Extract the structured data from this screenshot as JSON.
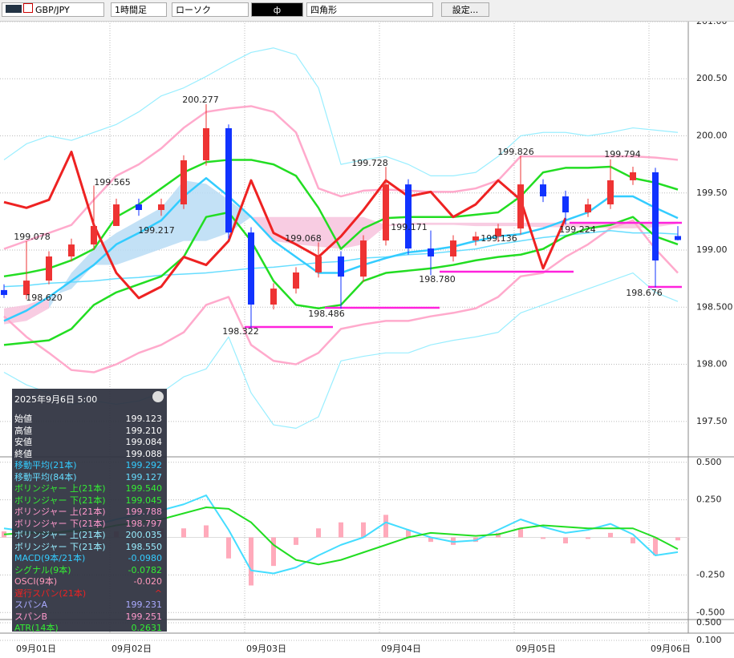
{
  "toolbar": {
    "symbol": "GBP/JPY",
    "timeframe": "1時間足",
    "chart_type": "ローソク",
    "color_box": "ф",
    "tool": "四角形",
    "settings": "設定..."
  },
  "info_panel": {
    "datetime": "2025年9月6日  5:00",
    "rows": [
      {
        "label": "始値",
        "value": "199.123",
        "color": "#ffffff"
      },
      {
        "label": "高値",
        "value": "199.210",
        "color": "#ffffff"
      },
      {
        "label": "安値",
        "value": "199.084",
        "color": "#ffffff"
      },
      {
        "label": "終値",
        "value": "199.088",
        "color": "#ffffff"
      },
      {
        "label": "移動平均(21本)",
        "value": "199.292",
        "color": "#33ccff"
      },
      {
        "label": "移動平均(84本)",
        "value": "199.127",
        "color": "#66ddff"
      },
      {
        "label": "ボリンジャー 上(21本)",
        "value": "199.540",
        "color": "#33ee33"
      },
      {
        "label": "ボリンジャー 下(21本)",
        "value": "199.045",
        "color": "#33ee33"
      },
      {
        "label": "ボリンジャー 上(21本)",
        "value": "199.788",
        "color": "#ff99cc"
      },
      {
        "label": "ボリンジャー 下(21本)",
        "value": "198.797",
        "color": "#ff99cc"
      },
      {
        "label": "ボリンジャー 上(21本)",
        "value": "200.035",
        "color": "#99eeff"
      },
      {
        "label": "ボリンジャー 下(21本)",
        "value": "198.550",
        "color": "#99eeff"
      },
      {
        "label": "MACD(9本/21本)",
        "value": "-0.0980",
        "color": "#33ccff"
      },
      {
        "label": "シグナル(9本)",
        "value": "-0.0782",
        "color": "#33ee33"
      },
      {
        "label": "OSCI(9本)",
        "value": "-0.020",
        "color": "#ff99bb"
      },
      {
        "label": "遅行スパン(21本)",
        "value": "^",
        "color": "#ee2222"
      },
      {
        "label": "スパンA",
        "value": "199.231",
        "color": "#aaaaff"
      },
      {
        "label": "スパンB",
        "value": "199.251",
        "color": "#ff99cc"
      },
      {
        "label": "ATR(14本)",
        "value": "0.2631",
        "color": "#33ee33"
      }
    ]
  },
  "price_axis": {
    "ylim": [
      197.19,
      201.035
    ],
    "ticks": [
      {
        "value": 201,
        "label": "201.00"
      },
      {
        "value": 200.5,
        "label": "200.50"
      },
      {
        "value": 200,
        "label": "200.00"
      },
      {
        "value": 199.5,
        "label": "199.50"
      },
      {
        "value": 199,
        "label": "199.00"
      },
      {
        "value": 198.5,
        "label": "198.500"
      },
      {
        "value": 198,
        "label": "198.00"
      },
      {
        "value": 197.5,
        "label": "197.50"
      }
    ]
  },
  "macd_axis": {
    "ylim": [
      -0.52,
      0.52
    ],
    "ticks": [
      {
        "value": 0.5,
        "label": "0.500"
      },
      {
        "value": 0.25,
        "label": "0.250"
      },
      {
        "value": -0.25,
        "label": "-0.250"
      },
      {
        "value": -0.5,
        "label": "-0.500"
      }
    ]
  },
  "atr_axis": {
    "ylim": [
      0.1,
      0.5
    ],
    "ticks": [
      {
        "value": 0.5,
        "label": "0.500"
      },
      {
        "value": 0.1,
        "label": "0.100"
      }
    ]
  },
  "dates": [
    "09月01日",
    "09月02日",
    "09月03日",
    "09月04日",
    "09月05日",
    "09月06日"
  ],
  "annotations": [
    "200.277",
    "199.565",
    "199.078",
    "198.620",
    "199.217",
    "198.322",
    "199.068",
    "198.486",
    "199.728",
    "199.171",
    "198.780",
    "199.136",
    "199.826",
    "199.224",
    "199.794",
    "198.676"
  ],
  "candles": {
    "up_color": "#ee3333",
    "down_color": "#1133ff",
    "open": [
      198.65,
      198.607,
      198.733,
      198.944,
      199.049,
      199.211,
      199.4,
      199.351,
      199.4,
      199.786,
      200.067,
      199.154,
      198.523,
      198.663,
      198.804,
      198.944,
      198.768,
      199.084,
      199.575,
      199.014,
      198.944,
      199.084,
      199.119,
      199.189,
      199.575,
      199.47,
      199.33,
      199.4,
      199.611,
      199.681,
      199.123
    ],
    "high": [
      198.7,
      199.078,
      198.99,
      199.1,
      199.565,
      199.45,
      199.45,
      199.45,
      199.83,
      200.277,
      200.1,
      199.2,
      198.71,
      198.85,
      199.068,
      198.99,
      199.13,
      199.728,
      199.62,
      199.171,
      199.13,
      199.16,
      199.23,
      199.826,
      199.62,
      199.52,
      199.45,
      199.794,
      199.73,
      199.72,
      199.21
    ],
    "low": [
      198.58,
      198.57,
      198.7,
      198.9,
      199.0,
      199.217,
      199.3,
      199.3,
      199.36,
      199.74,
      199.1,
      198.322,
      198.48,
      198.62,
      198.76,
      198.486,
      198.72,
      199.04,
      198.96,
      198.78,
      198.9,
      199.04,
      199.07,
      199.136,
      199.42,
      199.224,
      199.29,
      199.36,
      199.57,
      198.676,
      199.084
    ],
    "close": [
      198.607,
      198.733,
      198.944,
      199.049,
      199.211,
      199.4,
      199.351,
      199.4,
      199.786,
      200.067,
      199.154,
      198.523,
      198.663,
      198.804,
      198.944,
      198.768,
      199.084,
      199.575,
      199.014,
      198.944,
      199.084,
      199.119,
      199.189,
      199.575,
      199.47,
      199.33,
      199.4,
      199.611,
      199.681,
      198.909,
      199.088
    ]
  },
  "cloud": {
    "up_color": "#b9dcf5",
    "down_color": "#f7c3dd",
    "span_a": [
      198.35,
      198.38,
      198.49,
      198.8,
      199.01,
      199.15,
      199.26,
      199.37,
      199.61,
      199.58,
      199.44,
      199.29,
      199.08,
      199.05,
      199.03,
      199.01,
      199.05,
      199.21,
      199.22,
      199.22,
      199.22,
      199.21,
      199.21,
      199.21,
      199.2,
      199.2,
      199.2,
      199.19,
      199.19,
      199.2,
      199.23
    ],
    "span_b": [
      198.49,
      198.52,
      198.59,
      198.66,
      198.87,
      198.87,
      198.94,
      199.01,
      199.08,
      199.08,
      199.15,
      199.29,
      199.29,
      199.29,
      199.29,
      199.29,
      199.29,
      199.22,
      199.24,
      199.24,
      199.24,
      199.24,
      199.24,
      199.24,
      199.24,
      199.24,
      199.24,
      199.24,
      199.24,
      199.24,
      199.25
    ]
  },
  "lines": [
    {
      "color": "#99eeff",
      "values": [
        199.79,
        199.93,
        200.0,
        199.96,
        200.03,
        200.1,
        200.21,
        200.35,
        200.42,
        200.52,
        200.63,
        200.73,
        200.77,
        200.71,
        200.42,
        199.75,
        199.79,
        199.82,
        199.75,
        199.65,
        199.65,
        199.68,
        199.82,
        200.0,
        200.03,
        200.03,
        200.0,
        200.03,
        200.07,
        200.05,
        200.03
      ]
    },
    {
      "color": "#99eeff",
      "values": [
        197.93,
        197.82,
        197.75,
        197.65,
        197.68,
        197.65,
        197.68,
        197.75,
        197.89,
        197.96,
        198.24,
        197.75,
        197.47,
        197.44,
        197.54,
        198.03,
        198.07,
        198.1,
        198.1,
        198.17,
        198.21,
        198.24,
        198.28,
        198.45,
        198.52,
        198.59,
        198.66,
        198.73,
        198.8,
        198.63,
        198.55
      ]
    },
    {
      "color": "#ffaacc",
      "values": [
        199.01,
        199.08,
        199.15,
        199.22,
        199.44,
        199.65,
        199.75,
        199.89,
        200.07,
        200.21,
        200.24,
        200.26,
        200.21,
        200.03,
        199.54,
        199.47,
        199.52,
        199.53,
        199.52,
        199.51,
        199.51,
        199.54,
        199.61,
        199.82,
        199.82,
        199.82,
        199.82,
        199.82,
        199.82,
        199.81,
        199.79
      ]
    },
    {
      "color": "#ffaacc",
      "values": [
        198.42,
        198.24,
        198.1,
        197.95,
        197.93,
        198.0,
        198.1,
        198.17,
        198.28,
        198.52,
        198.59,
        198.17,
        198.03,
        198.0,
        198.1,
        198.31,
        198.35,
        198.38,
        198.38,
        198.42,
        198.45,
        198.49,
        198.59,
        198.77,
        198.8,
        198.94,
        199.05,
        199.19,
        199.26,
        199.01,
        198.8
      ]
    },
    {
      "color": "#66ddff",
      "values": [
        198.68,
        198.69,
        198.71,
        198.72,
        198.73,
        198.75,
        198.76,
        198.78,
        198.79,
        198.8,
        198.82,
        198.84,
        198.85,
        198.87,
        198.89,
        198.9,
        198.93,
        198.94,
        198.96,
        198.97,
        198.99,
        199.01,
        199.05,
        199.08,
        199.11,
        199.13,
        199.15,
        199.17,
        199.15,
        199.15,
        199.14
      ]
    },
    {
      "color": "#33ccff",
      "values": [
        198.38,
        198.47,
        198.59,
        198.73,
        198.87,
        199.05,
        199.15,
        199.26,
        199.47,
        199.63,
        199.47,
        199.29,
        199.08,
        198.94,
        198.8,
        198.8,
        198.87,
        198.93,
        198.98,
        199.0,
        199.03,
        199.08,
        199.12,
        199.14,
        199.19,
        199.26,
        199.33,
        199.47,
        199.47,
        199.37,
        199.28
      ]
    },
    {
      "color": "#22dd22",
      "values": [
        198.77,
        198.8,
        198.84,
        198.91,
        199.01,
        199.29,
        199.4,
        199.54,
        199.68,
        199.77,
        199.79,
        199.79,
        199.75,
        199.65,
        199.37,
        199.01,
        199.19,
        199.28,
        199.29,
        199.29,
        199.29,
        199.31,
        199.33,
        199.47,
        199.68,
        199.72,
        199.72,
        199.73,
        199.63,
        199.59,
        199.53
      ]
    },
    {
      "color": "#22dd22",
      "values": [
        198.17,
        198.19,
        198.21,
        198.31,
        198.52,
        198.63,
        198.7,
        198.77,
        198.94,
        199.29,
        199.33,
        199.08,
        198.73,
        198.52,
        198.49,
        198.52,
        198.73,
        198.8,
        198.82,
        198.84,
        198.87,
        198.91,
        198.94,
        198.96,
        199.01,
        199.12,
        199.19,
        199.22,
        199.29,
        199.12,
        199.05
      ]
    },
    {
      "color": "#ee2222",
      "values": [
        199.42,
        199.37,
        199.44,
        199.86,
        199.22,
        198.8,
        198.58,
        198.68,
        198.94,
        198.87,
        199.08,
        199.61,
        199.15,
        199.05,
        198.94,
        199.12,
        199.35,
        199.61,
        199.47,
        199.51,
        199.29,
        199.4,
        199.61,
        199.44,
        198.84,
        199.28,
        null,
        null,
        null,
        null,
        null
      ]
    }
  ],
  "macd": {
    "osci": {
      "color": "#ffaabb",
      "values": [
        0.04,
        0.01,
        -0.01,
        0.01,
        0.03,
        0.04,
        0.05,
        0.06,
        0.06,
        0.08,
        -0.14,
        -0.32,
        -0.19,
        -0.05,
        0.06,
        0.1,
        0.1,
        0.15,
        0.05,
        -0.03,
        -0.05,
        -0.03,
        0.03,
        0.06,
        -0.01,
        -0.04,
        -0.01,
        0.03,
        -0.04,
        -0.12,
        -0.02
      ]
    },
    "lines": [
      {
        "color": "#44ddff",
        "values": [
          0.06,
          0.04,
          0.02,
          0.05,
          0.08,
          0.12,
          0.15,
          0.18,
          0.22,
          0.28,
          0.05,
          -0.22,
          -0.24,
          -0.2,
          -0.12,
          -0.05,
          0.0,
          0.1,
          0.05,
          0.0,
          -0.03,
          -0.02,
          0.05,
          0.12,
          0.07,
          0.03,
          0.05,
          0.09,
          0.02,
          -0.12,
          -0.098
        ]
      },
      {
        "color": "#22dd22",
        "values": [
          0.02,
          0.03,
          0.03,
          0.04,
          0.05,
          0.08,
          0.1,
          0.12,
          0.16,
          0.2,
          0.19,
          0.1,
          -0.05,
          -0.15,
          -0.18,
          -0.15,
          -0.1,
          -0.05,
          0.0,
          0.03,
          0.02,
          0.01,
          0.02,
          0.06,
          0.08,
          0.07,
          0.06,
          0.06,
          0.06,
          0.0,
          -0.078
        ]
      }
    ]
  }
}
